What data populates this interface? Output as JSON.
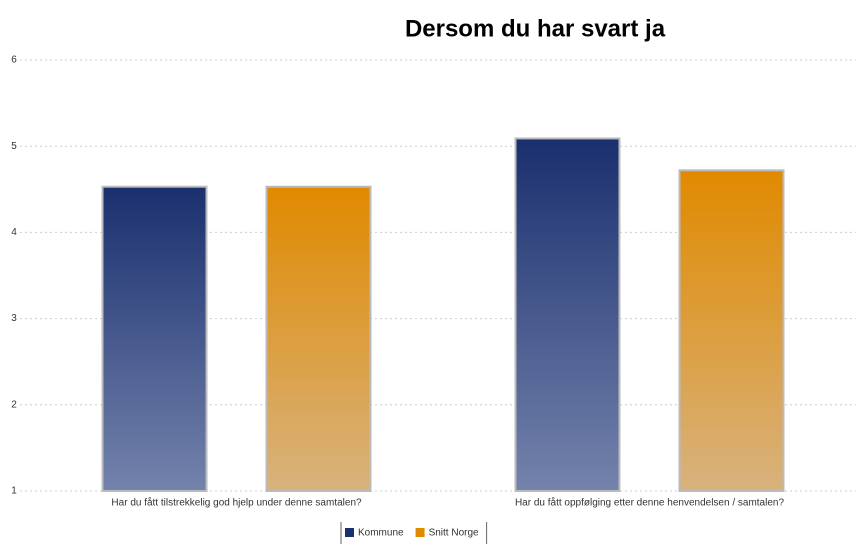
{
  "chart_data": {
    "type": "bar",
    "title": "Dersom du har svart ja",
    "categories": [
      "Har du fått tilstrekkelig god hjelp under denne samtalen?",
      "Har du fått oppfølging etter denne henvendelsen / samtalen?"
    ],
    "series": [
      {
        "name": "Kommune",
        "color": "#1a2f6e",
        "values": [
          4.53,
          5.09
        ]
      },
      {
        "name": "Snitt Norge",
        "color": "#e08a00",
        "values": [
          4.53,
          4.72
        ]
      }
    ],
    "ylim": [
      1,
      6
    ],
    "yticks": [
      1,
      2,
      3,
      4,
      5,
      6
    ],
    "grid": true
  }
}
